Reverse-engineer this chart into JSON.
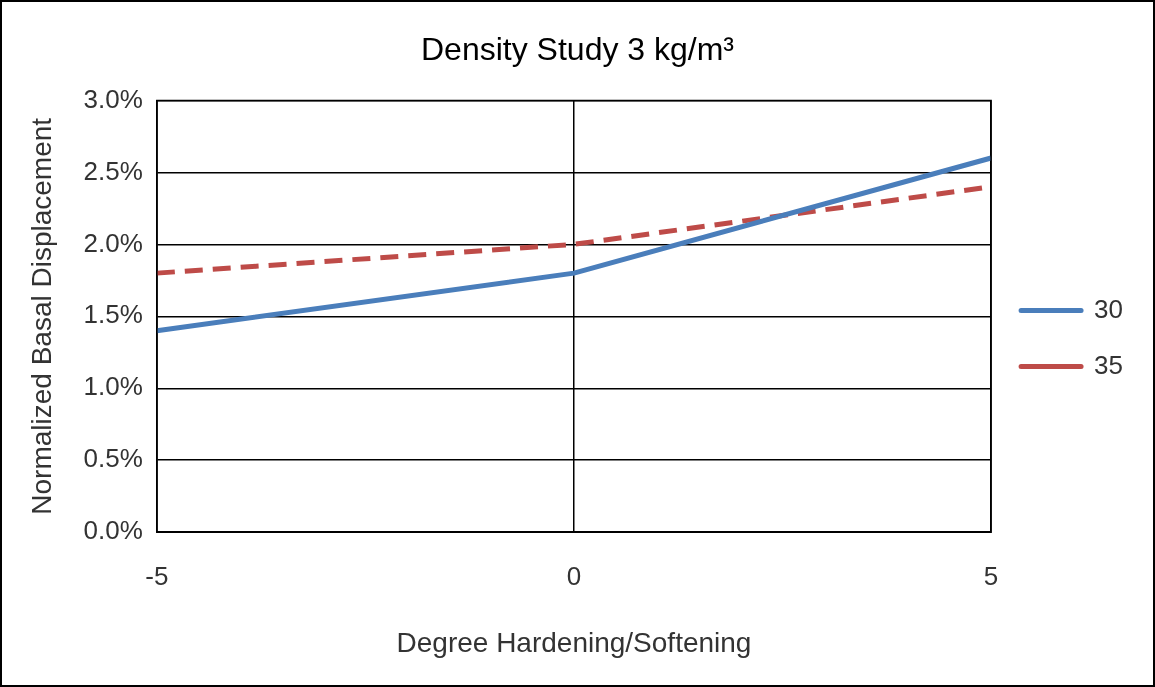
{
  "chart_data": {
    "type": "line",
    "title": "Density Study 3 kg/m³",
    "xlabel": "Degree Hardening/Softening",
    "ylabel": "Normalized Basal Displacement",
    "x": [
      -5,
      0,
      5
    ],
    "series": [
      {
        "name": "30",
        "color": "#4a7ebb",
        "values": [
          1.4,
          1.8,
          2.6
        ],
        "line_style": "solid"
      },
      {
        "name": "35",
        "color": "#be4b48",
        "values": [
          1.8,
          2.0,
          2.4
        ],
        "line_style": "dashed"
      }
    ],
    "xlim": [
      -5,
      5
    ],
    "xticks": [
      -5,
      0,
      5
    ],
    "ylim": [
      0,
      3
    ],
    "yticks": [
      {
        "value": 0,
        "label": "0.0%"
      },
      {
        "value": 0.5,
        "label": "0.5%"
      },
      {
        "value": 1,
        "label": "1.0%"
      },
      {
        "value": 1.5,
        "label": "1.5%"
      },
      {
        "value": 2,
        "label": "2.0%"
      },
      {
        "value": 2.5,
        "label": "2.5%"
      },
      {
        "value": 3,
        "label": "3.0%"
      }
    ],
    "grid": true,
    "legend": "right",
    "marker": "none"
  }
}
